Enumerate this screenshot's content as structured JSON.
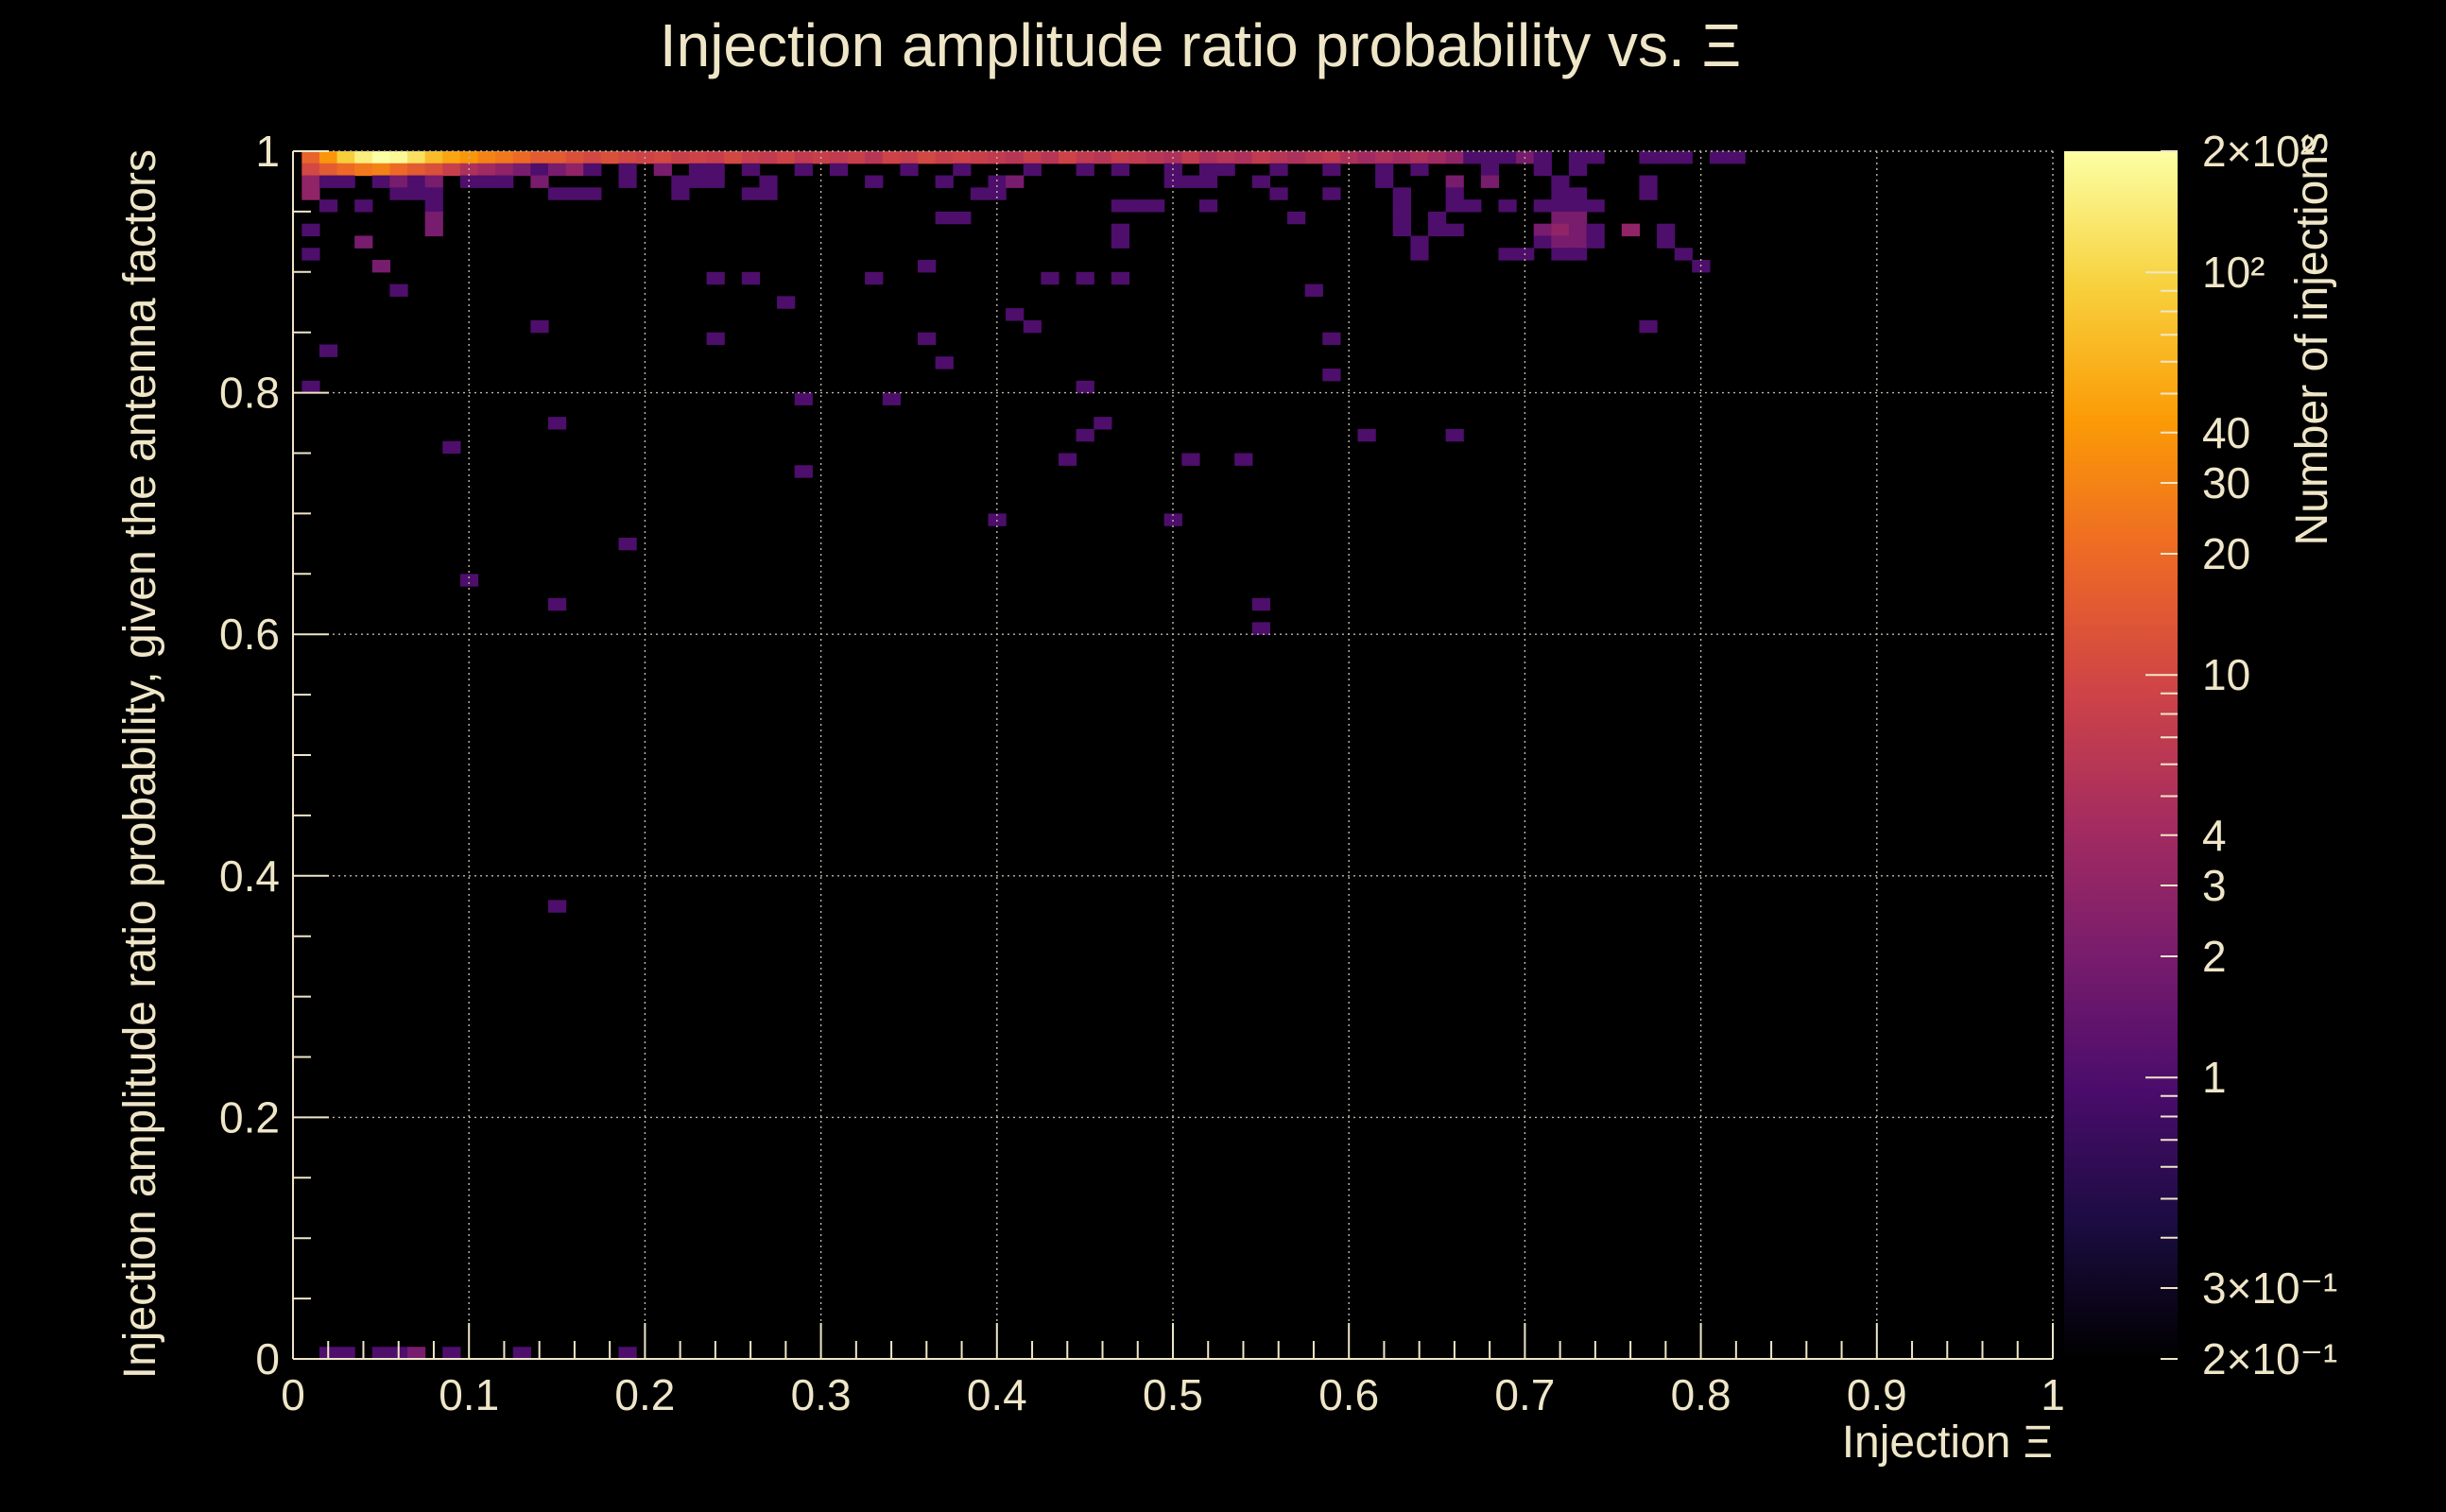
{
  "chart_data": {
    "type": "heatmap",
    "title": "Injection amplitude ratio probability vs.  Ξ",
    "xlabel": "Injection Ξ",
    "ylabel": "Injection amplitude ratio probability, given the antenna factors",
    "colorbar_label": "Number of injections",
    "xlim": [
      0,
      1
    ],
    "ylim": [
      0,
      1
    ],
    "x_ticks": [
      "0",
      "0.1",
      "0.2",
      "0.3",
      "0.4",
      "0.5",
      "0.6",
      "0.7",
      "0.8",
      "0.9",
      "1"
    ],
    "y_ticks": [
      "0",
      "0.2",
      "0.4",
      "0.6",
      "0.8",
      "1"
    ],
    "color_scale": "log",
    "color_range": [
      0.2,
      200
    ],
    "colorbar_ticks": [
      {
        "value": 200,
        "label": "2×10²"
      },
      {
        "value": 100,
        "label": "10²"
      },
      {
        "value": 40,
        "label": "40"
      },
      {
        "value": 30,
        "label": "30"
      },
      {
        "value": 20,
        "label": "20"
      },
      {
        "value": 10,
        "label": "10"
      },
      {
        "value": 4,
        "label": "4"
      },
      {
        "value": 3,
        "label": "3"
      },
      {
        "value": 2,
        "label": "2"
      },
      {
        "value": 1,
        "label": "1"
      },
      {
        "value": 0.3,
        "label": "3×10⁻¹"
      },
      {
        "value": 0.2,
        "label": "2×10⁻¹"
      }
    ],
    "bin_width": [
      0.01,
      0.01
    ],
    "colormap": [
      "#000000",
      "#1b0c41",
      "#4a0c6b",
      "#781c6d",
      "#a52c60",
      "#cf4446",
      "#ed6925",
      "#fb9b06",
      "#f7d13d",
      "#fcffa4"
    ],
    "cells": [
      [
        0.01,
        0.995,
        18
      ],
      [
        0.02,
        0.995,
        40
      ],
      [
        0.03,
        0.995,
        90
      ],
      [
        0.04,
        0.995,
        150
      ],
      [
        0.05,
        0.995,
        200
      ],
      [
        0.06,
        0.995,
        180
      ],
      [
        0.07,
        0.995,
        120
      ],
      [
        0.08,
        0.995,
        70
      ],
      [
        0.09,
        0.995,
        50
      ],
      [
        0.1,
        0.995,
        40
      ],
      [
        0.11,
        0.995,
        30
      ],
      [
        0.12,
        0.995,
        25
      ],
      [
        0.13,
        0.995,
        20
      ],
      [
        0.14,
        0.995,
        15
      ],
      [
        0.15,
        0.995,
        15
      ],
      [
        0.16,
        0.995,
        12
      ],
      [
        0.17,
        0.995,
        10
      ],
      [
        0.18,
        0.995,
        12
      ],
      [
        0.19,
        0.995,
        10
      ],
      [
        0.2,
        0.995,
        9
      ],
      [
        0.21,
        0.995,
        10
      ],
      [
        0.22,
        0.995,
        8
      ],
      [
        0.23,
        0.995,
        9
      ],
      [
        0.24,
        0.995,
        8
      ],
      [
        0.25,
        0.995,
        10
      ],
      [
        0.26,
        0.995,
        8
      ],
      [
        0.27,
        0.995,
        7
      ],
      [
        0.28,
        0.995,
        9
      ],
      [
        0.29,
        0.995,
        7
      ],
      [
        0.3,
        0.995,
        8
      ],
      [
        0.31,
        0.995,
        7
      ],
      [
        0.32,
        0.995,
        8
      ],
      [
        0.33,
        0.995,
        6
      ],
      [
        0.34,
        0.995,
        9
      ],
      [
        0.35,
        0.995,
        8
      ],
      [
        0.36,
        0.995,
        10
      ],
      [
        0.37,
        0.995,
        8
      ],
      [
        0.38,
        0.995,
        9
      ],
      [
        0.39,
        0.995,
        8
      ],
      [
        0.4,
        0.995,
        7
      ],
      [
        0.41,
        0.995,
        6
      ],
      [
        0.42,
        0.995,
        8
      ],
      [
        0.43,
        0.995,
        6
      ],
      [
        0.44,
        0.995,
        9
      ],
      [
        0.45,
        0.995,
        7
      ],
      [
        0.46,
        0.995,
        6
      ],
      [
        0.47,
        0.995,
        8
      ],
      [
        0.48,
        0.995,
        7
      ],
      [
        0.49,
        0.995,
        6
      ],
      [
        0.5,
        0.995,
        5
      ],
      [
        0.51,
        0.995,
        7
      ],
      [
        0.52,
        0.995,
        5
      ],
      [
        0.53,
        0.995,
        6
      ],
      [
        0.54,
        0.995,
        5
      ],
      [
        0.55,
        0.995,
        7
      ],
      [
        0.56,
        0.995,
        6
      ],
      [
        0.57,
        0.995,
        5
      ],
      [
        0.58,
        0.995,
        6
      ],
      [
        0.59,
        0.995,
        7
      ],
      [
        0.6,
        0.995,
        5
      ],
      [
        0.61,
        0.995,
        4
      ],
      [
        0.62,
        0.995,
        5
      ],
      [
        0.63,
        0.995,
        4
      ],
      [
        0.64,
        0.995,
        5
      ],
      [
        0.65,
        0.995,
        4
      ],
      [
        0.66,
        0.995,
        3
      ],
      [
        0.67,
        0.995,
        1
      ],
      [
        0.68,
        0.995,
        1
      ],
      [
        0.69,
        0.995,
        1
      ],
      [
        0.7,
        0.995,
        2
      ],
      [
        0.71,
        0.995,
        1
      ],
      [
        0.73,
        0.995,
        1
      ],
      [
        0.74,
        0.995,
        1
      ],
      [
        0.77,
        0.995,
        1
      ],
      [
        0.78,
        0.995,
        1
      ],
      [
        0.79,
        0.995,
        1
      ],
      [
        0.81,
        0.995,
        1
      ],
      [
        0.82,
        0.995,
        1
      ],
      [
        0.01,
        0.985,
        10
      ],
      [
        0.02,
        0.985,
        15
      ],
      [
        0.03,
        0.985,
        20
      ],
      [
        0.04,
        0.985,
        25
      ],
      [
        0.05,
        0.985,
        30
      ],
      [
        0.06,
        0.985,
        20
      ],
      [
        0.07,
        0.985,
        15
      ],
      [
        0.08,
        0.985,
        12
      ],
      [
        0.09,
        0.985,
        8
      ],
      [
        0.1,
        0.985,
        5
      ],
      [
        0.11,
        0.985,
        4
      ],
      [
        0.12,
        0.985,
        3
      ],
      [
        0.13,
        0.985,
        2
      ],
      [
        0.14,
        0.985,
        1
      ],
      [
        0.15,
        0.985,
        2
      ],
      [
        0.16,
        0.985,
        3
      ],
      [
        0.17,
        0.985,
        1
      ],
      [
        0.19,
        0.985,
        1
      ],
      [
        0.21,
        0.985,
        2
      ],
      [
        0.23,
        0.985,
        1
      ],
      [
        0.24,
        0.985,
        1
      ],
      [
        0.26,
        0.985,
        1
      ],
      [
        0.29,
        0.985,
        1
      ],
      [
        0.31,
        0.985,
        1
      ],
      [
        0.35,
        0.985,
        1
      ],
      [
        0.38,
        0.985,
        1
      ],
      [
        0.42,
        0.985,
        1
      ],
      [
        0.45,
        0.985,
        1
      ],
      [
        0.47,
        0.985,
        1
      ],
      [
        0.5,
        0.985,
        1
      ],
      [
        0.52,
        0.985,
        1
      ],
      [
        0.53,
        0.985,
        1
      ],
      [
        0.56,
        0.985,
        1
      ],
      [
        0.59,
        0.985,
        1
      ],
      [
        0.62,
        0.985,
        1
      ],
      [
        0.64,
        0.985,
        1
      ],
      [
        0.68,
        0.985,
        1
      ],
      [
        0.71,
        0.985,
        1
      ],
      [
        0.73,
        0.985,
        1
      ],
      [
        0.01,
        0.975,
        3
      ],
      [
        0.02,
        0.975,
        1
      ],
      [
        0.03,
        0.975,
        1
      ],
      [
        0.05,
        0.975,
        1
      ],
      [
        0.06,
        0.975,
        2
      ],
      [
        0.07,
        0.975,
        1
      ],
      [
        0.08,
        0.975,
        2
      ],
      [
        0.1,
        0.975,
        1
      ],
      [
        0.11,
        0.975,
        1
      ],
      [
        0.12,
        0.975,
        1
      ],
      [
        0.14,
        0.975,
        2
      ],
      [
        0.19,
        0.975,
        1
      ],
      [
        0.22,
        0.975,
        1
      ],
      [
        0.23,
        0.975,
        1
      ],
      [
        0.24,
        0.975,
        1
      ],
      [
        0.27,
        0.975,
        1
      ],
      [
        0.33,
        0.975,
        1
      ],
      [
        0.37,
        0.975,
        1
      ],
      [
        0.4,
        0.975,
        1
      ],
      [
        0.41,
        0.975,
        2
      ],
      [
        0.5,
        0.975,
        1
      ],
      [
        0.51,
        0.975,
        1
      ],
      [
        0.52,
        0.975,
        1
      ],
      [
        0.55,
        0.975,
        1
      ],
      [
        0.62,
        0.975,
        1
      ],
      [
        0.66,
        0.975,
        2
      ],
      [
        0.68,
        0.975,
        2
      ],
      [
        0.72,
        0.975,
        1
      ],
      [
        0.77,
        0.975,
        1
      ],
      [
        0.01,
        0.965,
        3
      ],
      [
        0.06,
        0.965,
        1
      ],
      [
        0.07,
        0.965,
        1
      ],
      [
        0.08,
        0.965,
        1
      ],
      [
        0.15,
        0.965,
        1
      ],
      [
        0.16,
        0.965,
        1
      ],
      [
        0.17,
        0.965,
        1
      ],
      [
        0.22,
        0.965,
        1
      ],
      [
        0.26,
        0.965,
        1
      ],
      [
        0.27,
        0.965,
        1
      ],
      [
        0.39,
        0.965,
        1
      ],
      [
        0.4,
        0.965,
        1
      ],
      [
        0.56,
        0.965,
        1
      ],
      [
        0.59,
        0.965,
        1
      ],
      [
        0.63,
        0.965,
        1
      ],
      [
        0.66,
        0.965,
        1
      ],
      [
        0.72,
        0.965,
        1
      ],
      [
        0.73,
        0.965,
        1
      ],
      [
        0.77,
        0.965,
        1
      ],
      [
        0.02,
        0.955,
        1
      ],
      [
        0.04,
        0.955,
        1
      ],
      [
        0.08,
        0.955,
        1
      ],
      [
        0.47,
        0.955,
        1
      ],
      [
        0.48,
        0.955,
        1
      ],
      [
        0.49,
        0.955,
        1
      ],
      [
        0.52,
        0.955,
        1
      ],
      [
        0.63,
        0.955,
        1
      ],
      [
        0.66,
        0.955,
        1
      ],
      [
        0.67,
        0.955,
        1
      ],
      [
        0.69,
        0.955,
        1
      ],
      [
        0.71,
        0.955,
        1
      ],
      [
        0.72,
        0.955,
        1
      ],
      [
        0.73,
        0.955,
        1
      ],
      [
        0.74,
        0.955,
        1
      ],
      [
        0.08,
        0.945,
        2
      ],
      [
        0.37,
        0.945,
        1
      ],
      [
        0.38,
        0.945,
        1
      ],
      [
        0.57,
        0.945,
        1
      ],
      [
        0.63,
        0.945,
        1
      ],
      [
        0.65,
        0.945,
        1
      ],
      [
        0.72,
        0.945,
        2
      ],
      [
        0.73,
        0.945,
        2
      ],
      [
        0.01,
        0.935,
        1
      ],
      [
        0.08,
        0.935,
        2
      ],
      [
        0.47,
        0.935,
        1
      ],
      [
        0.63,
        0.935,
        1
      ],
      [
        0.65,
        0.935,
        1
      ],
      [
        0.66,
        0.935,
        1
      ],
      [
        0.71,
        0.935,
        2
      ],
      [
        0.72,
        0.935,
        3
      ],
      [
        0.73,
        0.935,
        2
      ],
      [
        0.74,
        0.935,
        1
      ],
      [
        0.76,
        0.935,
        3
      ],
      [
        0.78,
        0.935,
        1
      ],
      [
        0.04,
        0.925,
        2
      ],
      [
        0.47,
        0.925,
        1
      ],
      [
        0.64,
        0.925,
        1
      ],
      [
        0.71,
        0.925,
        1
      ],
      [
        0.72,
        0.925,
        2
      ],
      [
        0.73,
        0.925,
        2
      ],
      [
        0.74,
        0.925,
        1
      ],
      [
        0.78,
        0.925,
        1
      ],
      [
        0.01,
        0.915,
        1
      ],
      [
        0.64,
        0.915,
        1
      ],
      [
        0.69,
        0.915,
        1
      ],
      [
        0.7,
        0.915,
        1
      ],
      [
        0.72,
        0.915,
        1
      ],
      [
        0.73,
        0.915,
        1
      ],
      [
        0.79,
        0.915,
        1
      ],
      [
        0.05,
        0.905,
        2
      ],
      [
        0.36,
        0.905,
        1
      ],
      [
        0.8,
        0.905,
        1
      ],
      [
        0.24,
        0.895,
        1
      ],
      [
        0.26,
        0.895,
        1
      ],
      [
        0.33,
        0.895,
        1
      ],
      [
        0.43,
        0.895,
        1
      ],
      [
        0.45,
        0.895,
        1
      ],
      [
        0.47,
        0.895,
        1
      ],
      [
        0.06,
        0.885,
        1
      ],
      [
        0.58,
        0.885,
        1
      ],
      [
        0.28,
        0.875,
        1
      ],
      [
        0.41,
        0.865,
        1
      ],
      [
        0.42,
        0.855,
        1
      ],
      [
        0.14,
        0.855,
        1
      ],
      [
        0.77,
        0.855,
        1
      ],
      [
        0.24,
        0.845,
        1
      ],
      [
        0.36,
        0.845,
        1
      ],
      [
        0.59,
        0.845,
        1
      ],
      [
        0.02,
        0.835,
        1
      ],
      [
        0.37,
        0.825,
        1
      ],
      [
        0.59,
        0.815,
        1
      ],
      [
        0.01,
        0.805,
        1
      ],
      [
        0.45,
        0.805,
        1
      ],
      [
        0.29,
        0.795,
        1
      ],
      [
        0.34,
        0.795,
        1
      ],
      [
        0.15,
        0.775,
        1
      ],
      [
        0.46,
        0.775,
        1
      ],
      [
        0.45,
        0.765,
        1
      ],
      [
        0.61,
        0.765,
        1
      ],
      [
        0.66,
        0.765,
        1
      ],
      [
        0.09,
        0.755,
        1
      ],
      [
        0.44,
        0.745,
        1
      ],
      [
        0.51,
        0.745,
        1
      ],
      [
        0.54,
        0.745,
        1
      ],
      [
        0.29,
        0.735,
        1
      ],
      [
        0.4,
        0.695,
        1
      ],
      [
        0.5,
        0.695,
        1
      ],
      [
        0.19,
        0.675,
        1
      ],
      [
        0.1,
        0.645,
        1
      ],
      [
        0.15,
        0.625,
        1
      ],
      [
        0.55,
        0.625,
        1
      ],
      [
        0.55,
        0.605,
        1
      ],
      [
        0.15,
        0.375,
        1
      ],
      [
        0.02,
        0.005,
        1
      ],
      [
        0.03,
        0.005,
        1
      ],
      [
        0.05,
        0.005,
        1
      ],
      [
        0.06,
        0.005,
        1
      ],
      [
        0.07,
        0.005,
        2
      ],
      [
        0.09,
        0.005,
        1
      ],
      [
        0.13,
        0.005,
        1
      ],
      [
        0.19,
        0.005,
        1
      ]
    ]
  }
}
